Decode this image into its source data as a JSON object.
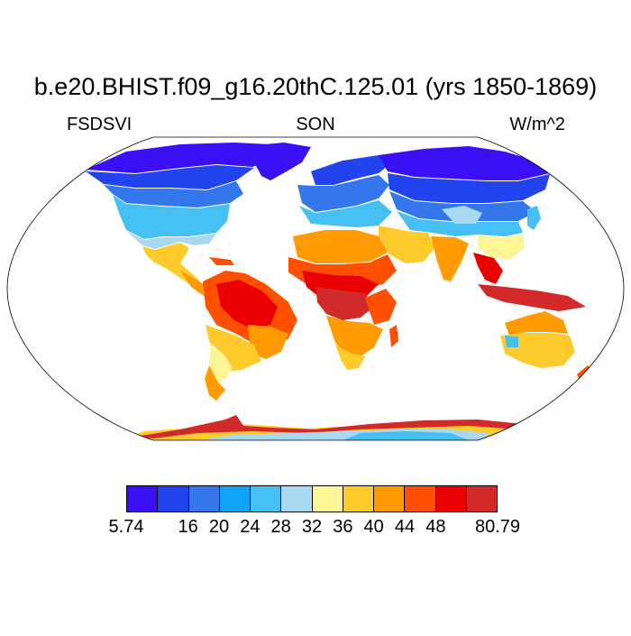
{
  "title": "b.e20.BHIST.f09_g16.20thC.125.01 (yrs 1850-1869)",
  "left_string": "FSDSVI",
  "center_string": "SON",
  "right_string": "W/m^2",
  "colorbar": {
    "colors": [
      "#3a0ff5",
      "#2244ee",
      "#3477ed",
      "#12a4f4",
      "#46c0f2",
      "#a8d9f0",
      "#fef596",
      "#ffcb2c",
      "#ff9a00",
      "#ff5000",
      "#ea0000",
      "#d22a2a"
    ],
    "labels": [
      "5.74",
      "16",
      "20",
      "24",
      "28",
      "32",
      "36",
      "40",
      "44",
      "48",
      "80.79"
    ],
    "label_boundaries": [
      0,
      2,
      3,
      4,
      5,
      6,
      7,
      8,
      9,
      10,
      12
    ]
  },
  "map": {
    "projection": "Robinson",
    "ocean_color": "#ffffff",
    "coastline_color": "#000000"
  }
}
